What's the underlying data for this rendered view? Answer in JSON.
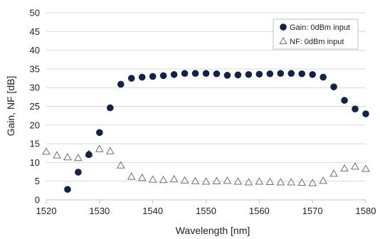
{
  "chart_data": {
    "type": "scatter",
    "title": "",
    "xlabel": "Wavelength [nm]",
    "ylabel": "Gain, NF [dB]",
    "xlim": [
      1520,
      1580
    ],
    "ylim": [
      0,
      50
    ],
    "xticks": [
      1520,
      1530,
      1540,
      1550,
      1560,
      1570,
      1580
    ],
    "yticks": [
      0,
      5,
      10,
      15,
      20,
      25,
      30,
      35,
      40,
      45,
      50
    ],
    "grid": "horizontal",
    "legend_position": "top-right",
    "series": [
      {
        "name": "Gain: 0dBm input",
        "marker": "filled-circle",
        "color": "#12234a",
        "x": [
          1524,
          1526,
          1528,
          1530,
          1532,
          1534,
          1536,
          1538,
          1540,
          1542,
          1544,
          1546,
          1548,
          1550,
          1552,
          1554,
          1556,
          1558,
          1560,
          1562,
          1564,
          1566,
          1568,
          1570,
          1572,
          1574,
          1576,
          1578,
          1580
        ],
        "y": [
          2.8,
          7.4,
          12.1,
          18.0,
          24.6,
          30.9,
          32.5,
          32.8,
          33.0,
          33.2,
          33.5,
          33.8,
          33.8,
          33.8,
          33.7,
          33.3,
          33.4,
          33.5,
          33.6,
          33.7,
          33.8,
          33.8,
          33.7,
          33.5,
          32.8,
          30.2,
          26.6,
          24.3,
          23.0
        ]
      },
      {
        "name": "NF: 0dBm input",
        "marker": "open-triangle",
        "color": "#6a6f80",
        "x": [
          1520,
          1522,
          1524,
          1526,
          1528,
          1530,
          1532,
          1534,
          1536,
          1538,
          1540,
          1542,
          1544,
          1546,
          1548,
          1550,
          1552,
          1554,
          1556,
          1558,
          1560,
          1562,
          1564,
          1566,
          1568,
          1570,
          1572,
          1574,
          1576,
          1578,
          1580
        ],
        "y": [
          12.8,
          11.8,
          11.3,
          11.1,
          12.2,
          13.5,
          12.9,
          9.1,
          6.1,
          5.8,
          5.3,
          5.2,
          5.4,
          5.1,
          4.9,
          4.8,
          4.9,
          5.0,
          4.8,
          4.6,
          4.8,
          4.7,
          4.6,
          4.6,
          4.5,
          4.4,
          5.0,
          6.9,
          8.3,
          8.8,
          8.2
        ]
      }
    ]
  }
}
